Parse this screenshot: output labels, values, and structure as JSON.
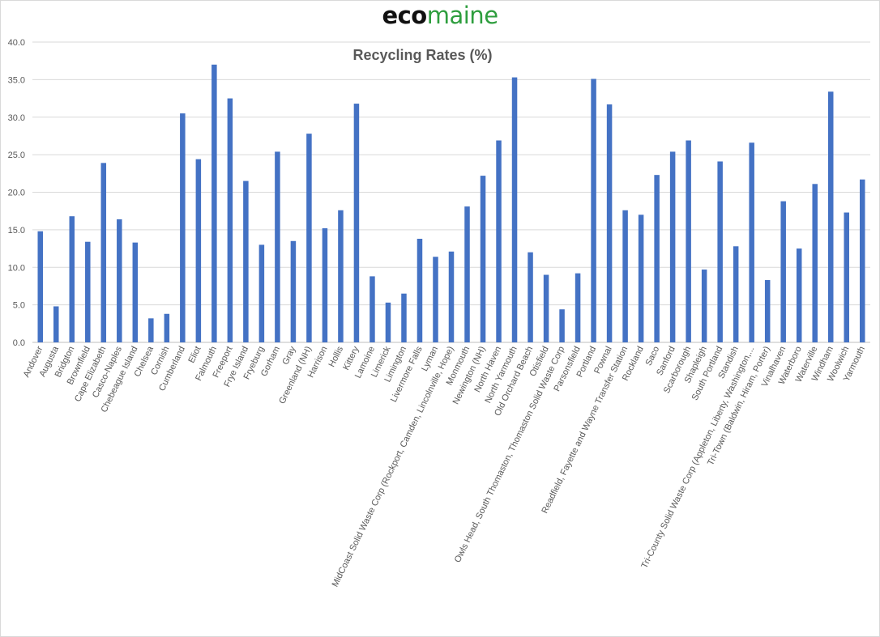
{
  "logo": {
    "part1": "eco",
    "part2": "maine"
  },
  "chart_data": {
    "type": "bar",
    "title": "Recycling Rates (%)",
    "xlabel": "",
    "ylabel": "",
    "ylim": [
      0,
      40
    ],
    "yticks": [
      "0.0",
      "5.0",
      "10.0",
      "15.0",
      "20.0",
      "25.0",
      "30.0",
      "35.0",
      "40.0"
    ],
    "grid": true,
    "bar_color": "#4472c4",
    "categories": [
      "Andover",
      "Augusta",
      "Bridgton",
      "Brownfield",
      "Cape Elizabeth",
      "Casco-Naples",
      "Chebeague Island",
      "Chelsea",
      "Cornish",
      "Cumberland",
      "Eliot",
      "Falmouth",
      "Freeport",
      "Frye Island",
      "Fryeburg",
      "Gorham",
      "Gray",
      "Greenland (NH)",
      "Harrison",
      "Hollis",
      "Kittery",
      "Lamoine",
      "Limerick",
      "Limington",
      "Livermore Falls",
      "Lyman",
      "MidCoast Solid Waste Corp (Rockport, Camden, Lincolnville, Hope)",
      "Monmouth",
      "Newington (NH)",
      "North Haven",
      "North Yarmouth",
      "Old Orchard Beach",
      "Otisfield",
      "Owls Head, South Thomaston, Thomaston Solid Waste Corp",
      "Parsonsfield",
      "Portland",
      "Pownal",
      "Readfield, Fayette and Wayne Transfer Station",
      "Rockland",
      "Saco",
      "Sanford",
      "Scarborough",
      "Shapleigh",
      "South Portland",
      "Standish",
      "Tri-County Solid Waste Corp (Appleton, Liberty, Washington,...",
      "Tri-Town (Baldwin, Hiram, Porter)",
      "Vinalhaven",
      "Waterboro",
      "Waterville",
      "Windham",
      "Woolwich",
      "Yarmouth"
    ],
    "values": [
      14.8,
      4.8,
      16.8,
      13.4,
      23.9,
      16.4,
      13.3,
      3.2,
      3.8,
      30.5,
      24.4,
      37.0,
      32.5,
      21.5,
      13.0,
      25.4,
      13.5,
      27.8,
      15.2,
      17.6,
      31.8,
      8.8,
      5.3,
      6.5,
      13.8,
      11.4,
      12.1,
      18.1,
      22.2,
      26.9,
      35.3,
      12.0,
      9.0,
      4.4,
      9.2,
      35.1,
      31.7,
      17.6,
      17.0,
      22.3,
      25.4,
      26.9,
      9.7,
      24.1,
      12.8,
      26.6,
      8.3,
      18.8,
      12.5,
      21.1,
      33.4,
      17.3,
      21.7
    ]
  }
}
